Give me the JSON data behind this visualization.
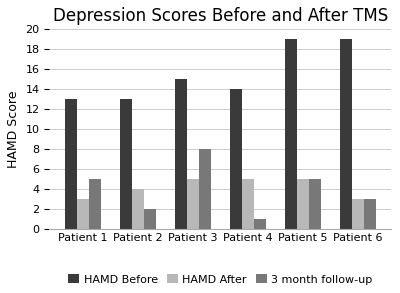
{
  "title": "Depression Scores Before and After TMS",
  "ylabel": "HAMD Score",
  "categories": [
    "Patient 1",
    "Patient 2",
    "Patient 3",
    "Patient 4",
    "Patient 5",
    "Patient 6"
  ],
  "series": {
    "HAMD Before": [
      13,
      13,
      15,
      14,
      19,
      19
    ],
    "HAMD After": [
      3,
      4,
      5,
      5,
      5,
      3
    ],
    "3 month follow-up": [
      5,
      2,
      8,
      1,
      5,
      3
    ]
  },
  "colors": {
    "HAMD Before": "#3a3a3a",
    "HAMD After": "#b8b8b8",
    "3 month follow-up": "#787878"
  },
  "ylim": [
    0,
    20
  ],
  "yticks": [
    0,
    2,
    4,
    6,
    8,
    10,
    12,
    14,
    16,
    18,
    20
  ],
  "bar_width": 0.22,
  "title_fontsize": 12,
  "axis_fontsize": 9,
  "tick_fontsize": 8,
  "legend_fontsize": 8,
  "background_color": "#ffffff",
  "grid_color": "#cccccc"
}
